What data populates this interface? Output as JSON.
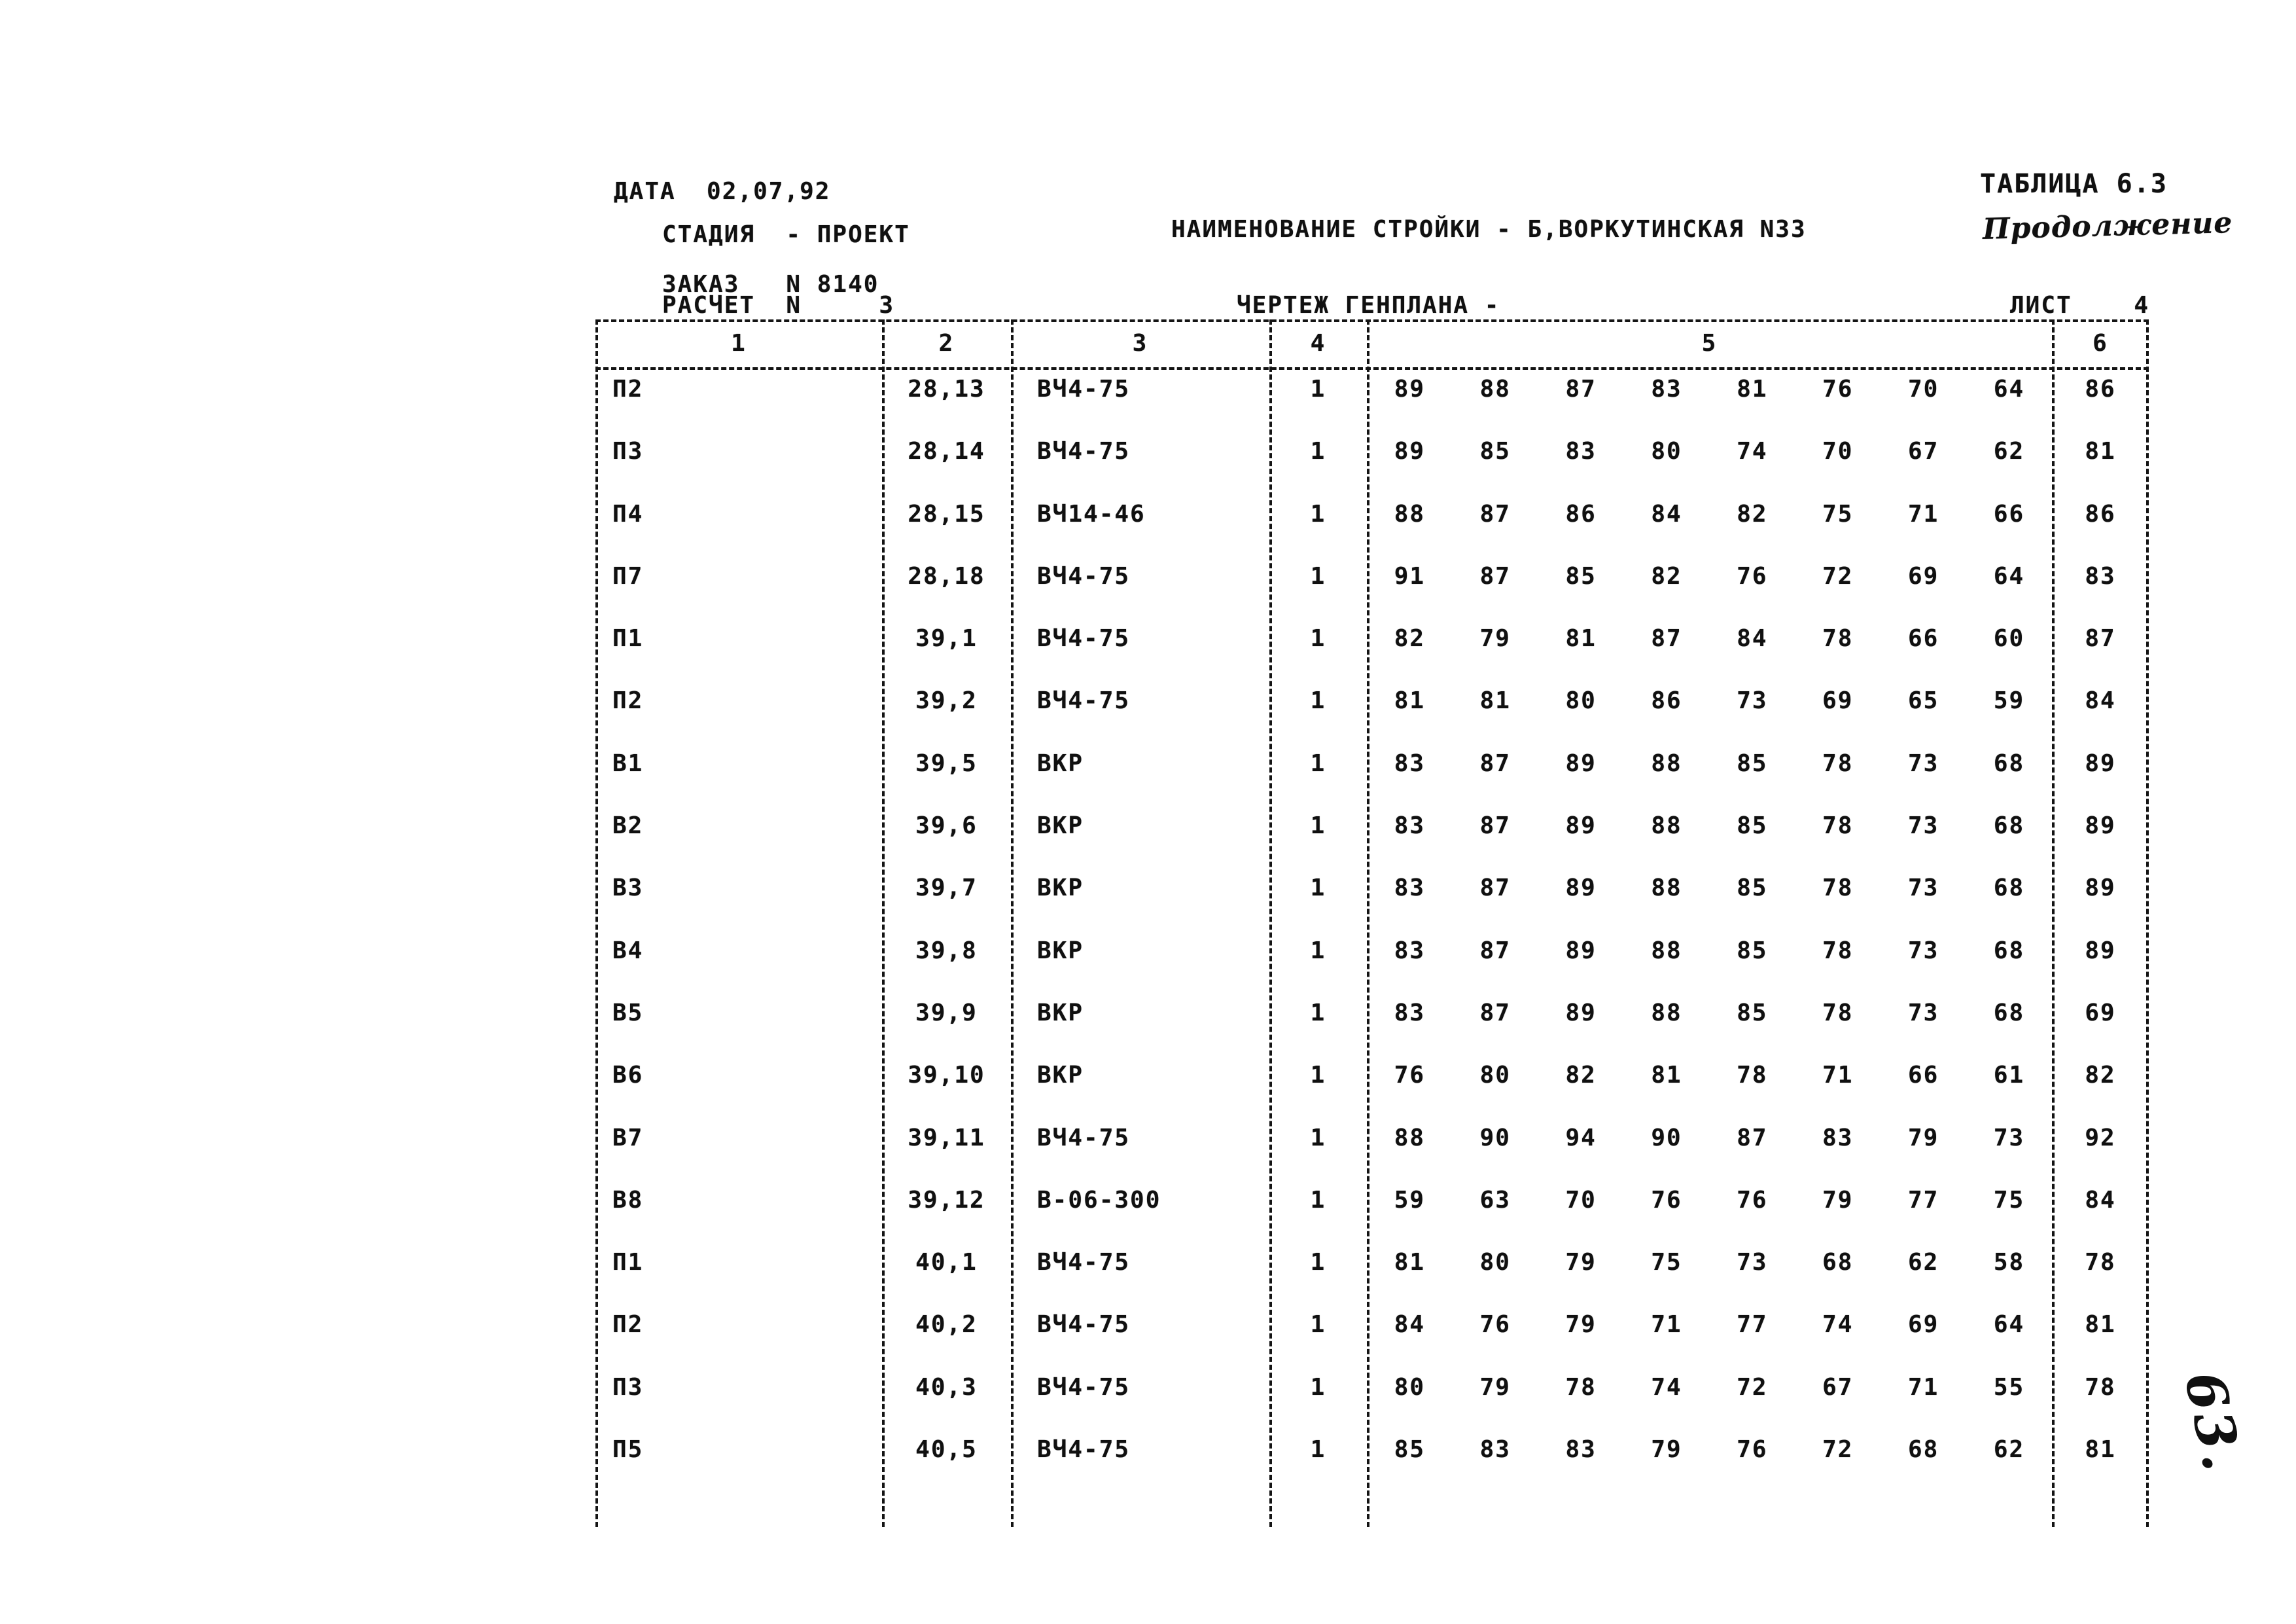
{
  "header": {
    "date": "ДАТА  02,07,92",
    "table_no": "ТАБЛИЦА 6.3",
    "continuation": "Продолжение",
    "stage": "СТАДИЯ  - ПРОЕКТ",
    "building_name": "НАИМЕНОВАНИЕ СТРОЙКИ - Б,ВОРКУТИНСКАЯ N33",
    "order": "ЗАКАЗ   N 8140",
    "calc": "РАСЧЕТ  N     3",
    "drawing": "ЧЕРТЕЖ ГЕНПЛАНА -",
    "sheet": "ЛИСТ    4",
    "handwritten_page": "63."
  },
  "table": {
    "columns": [
      "1",
      "2",
      "3",
      "4",
      "5",
      "6"
    ],
    "rows": [
      {
        "c1": "П2",
        "c2": "28,13",
        "c3": "ВЧ4-75",
        "c4": "1",
        "values": [
          "89",
          "88",
          "87",
          "83",
          "81",
          "76",
          "70",
          "64"
        ],
        "c6": "86"
      },
      {
        "c1": "П3",
        "c2": "28,14",
        "c3": "ВЧ4-75",
        "c4": "1",
        "values": [
          "89",
          "85",
          "83",
          "80",
          "74",
          "70",
          "67",
          "62"
        ],
        "c6": "81"
      },
      {
        "c1": "П4",
        "c2": "28,15",
        "c3": "ВЧ14-46",
        "c4": "1",
        "values": [
          "88",
          "87",
          "86",
          "84",
          "82",
          "75",
          "71",
          "66"
        ],
        "c6": "86"
      },
      {
        "c1": "П7",
        "c2": "28,18",
        "c3": "ВЧ4-75",
        "c4": "1",
        "values": [
          "91",
          "87",
          "85",
          "82",
          "76",
          "72",
          "69",
          "64"
        ],
        "c6": "83"
      },
      {
        "c1": "П1",
        "c2": "39,1",
        "c3": "ВЧ4-75",
        "c4": "1",
        "values": [
          "82",
          "79",
          "81",
          "87",
          "84",
          "78",
          "66",
          "60"
        ],
        "c6": "87"
      },
      {
        "c1": "П2",
        "c2": "39,2",
        "c3": "ВЧ4-75",
        "c4": "1",
        "values": [
          "81",
          "81",
          "80",
          "86",
          "73",
          "69",
          "65",
          "59"
        ],
        "c6": "84"
      },
      {
        "c1": "В1",
        "c2": "39,5",
        "c3": "ВКР",
        "c4": "1",
        "values": [
          "83",
          "87",
          "89",
          "88",
          "85",
          "78",
          "73",
          "68"
        ],
        "c6": "89"
      },
      {
        "c1": "В2",
        "c2": "39,6",
        "c3": "ВКР",
        "c4": "1",
        "values": [
          "83",
          "87",
          "89",
          "88",
          "85",
          "78",
          "73",
          "68"
        ],
        "c6": "89"
      },
      {
        "c1": "В3",
        "c2": "39,7",
        "c3": "ВКР",
        "c4": "1",
        "values": [
          "83",
          "87",
          "89",
          "88",
          "85",
          "78",
          "73",
          "68"
        ],
        "c6": "89"
      },
      {
        "c1": "В4",
        "c2": "39,8",
        "c3": "ВКР",
        "c4": "1",
        "values": [
          "83",
          "87",
          "89",
          "88",
          "85",
          "78",
          "73",
          "68"
        ],
        "c6": "89"
      },
      {
        "c1": "В5",
        "c2": "39,9",
        "c3": "ВКР",
        "c4": "1",
        "values": [
          "83",
          "87",
          "89",
          "88",
          "85",
          "78",
          "73",
          "68"
        ],
        "c6": "69"
      },
      {
        "c1": "В6",
        "c2": "39,10",
        "c3": "ВКР",
        "c4": "1",
        "values": [
          "76",
          "80",
          "82",
          "81",
          "78",
          "71",
          "66",
          "61"
        ],
        "c6": "82"
      },
      {
        "c1": "В7",
        "c2": "39,11",
        "c3": "ВЧ4-75",
        "c4": "1",
        "values": [
          "88",
          "90",
          "94",
          "90",
          "87",
          "83",
          "79",
          "73"
        ],
        "c6": "92"
      },
      {
        "c1": "В8",
        "c2": "39,12",
        "c3": "В-06-300",
        "c4": "1",
        "values": [
          "59",
          "63",
          "70",
          "76",
          "76",
          "79",
          "77",
          "75"
        ],
        "c6": "84"
      },
      {
        "c1": "П1",
        "c2": "40,1",
        "c3": "ВЧ4-75",
        "c4": "1",
        "values": [
          "81",
          "80",
          "79",
          "75",
          "73",
          "68",
          "62",
          "58"
        ],
        "c6": "78"
      },
      {
        "c1": "П2",
        "c2": "40,2",
        "c3": "ВЧ4-75",
        "c4": "1",
        "values": [
          "84",
          "76",
          "79",
          "71",
          "77",
          "74",
          "69",
          "64"
        ],
        "c6": "81"
      },
      {
        "c1": "П3",
        "c2": "40,3",
        "c3": "ВЧ4-75",
        "c4": "1",
        "values": [
          "80",
          "79",
          "78",
          "74",
          "72",
          "67",
          "71",
          "55"
        ],
        "c6": "78"
      },
      {
        "c1": "П5",
        "c2": "40,5",
        "c3": "ВЧ4-75",
        "c4": "1",
        "values": [
          "85",
          "83",
          "83",
          "79",
          "76",
          "72",
          "68",
          "62"
        ],
        "c6": "81"
      }
    ]
  }
}
